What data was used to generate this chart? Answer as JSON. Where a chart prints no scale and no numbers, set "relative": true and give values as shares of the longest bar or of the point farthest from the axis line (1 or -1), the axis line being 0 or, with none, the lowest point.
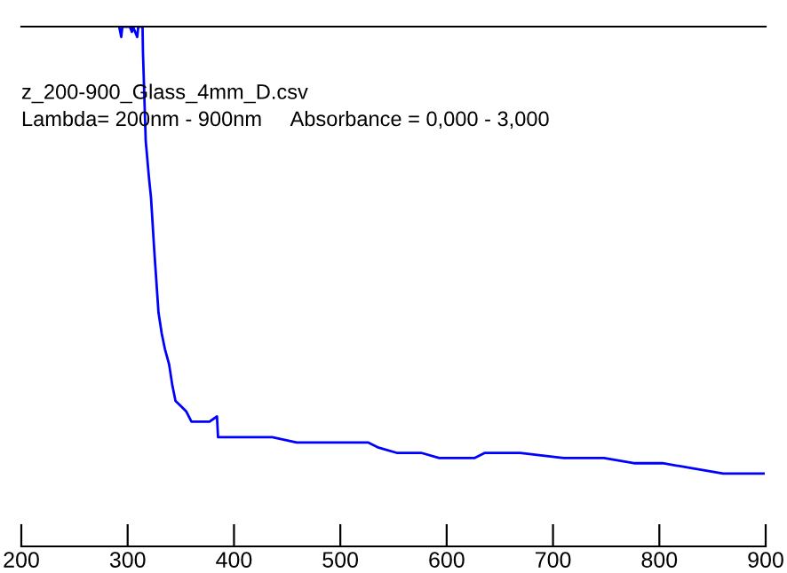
{
  "chart_data": {
    "type": "line",
    "relative": true,
    "annotations": [
      "z_200-900_Glass_4mm_D.csv",
      "Lambda= 200nm - 900nm     Absorbance = 0,000 - 3,000"
    ],
    "xlim": [
      200,
      900
    ],
    "xticks": [
      200,
      300,
      400,
      500,
      600,
      700,
      800,
      900
    ],
    "grid": false,
    "legend": false,
    "marker": "none",
    "line_style": "solid",
    "series": [
      {
        "color": "#0000ff",
        "x": [
          292,
          294,
          295,
          302,
          304,
          305,
          309,
          310,
          314,
          314.4,
          317,
          320,
          322,
          325,
          327,
          329,
          332,
          335,
          339,
          342,
          345,
          350,
          355,
          360,
          367,
          374,
          377,
          384,
          385,
          389,
          397,
          414,
          436,
          459,
          481,
          522,
          526,
          536,
          553,
          576,
          593,
          614,
          619,
          626,
          636,
          651,
          669,
          710,
          748,
          776,
          803,
          832,
          860,
          882,
          898
        ],
        "values": [
          1.0,
          0.98,
          1.0,
          1.0,
          0.99,
          1.0,
          0.98,
          1.0,
          1.0,
          0.95,
          0.78,
          0.71,
          0.67,
          0.57,
          0.51,
          0.45,
          0.41,
          0.38,
          0.35,
          0.31,
          0.28,
          0.27,
          0.26,
          0.24,
          0.24,
          0.24,
          0.24,
          0.25,
          0.21,
          0.21,
          0.21,
          0.21,
          0.21,
          0.2,
          0.2,
          0.2,
          0.2,
          0.19,
          0.18,
          0.18,
          0.17,
          0.17,
          0.17,
          0.17,
          0.18,
          0.18,
          0.18,
          0.17,
          0.17,
          0.16,
          0.16,
          0.15,
          0.14,
          0.14,
          0.14
        ]
      }
    ]
  }
}
